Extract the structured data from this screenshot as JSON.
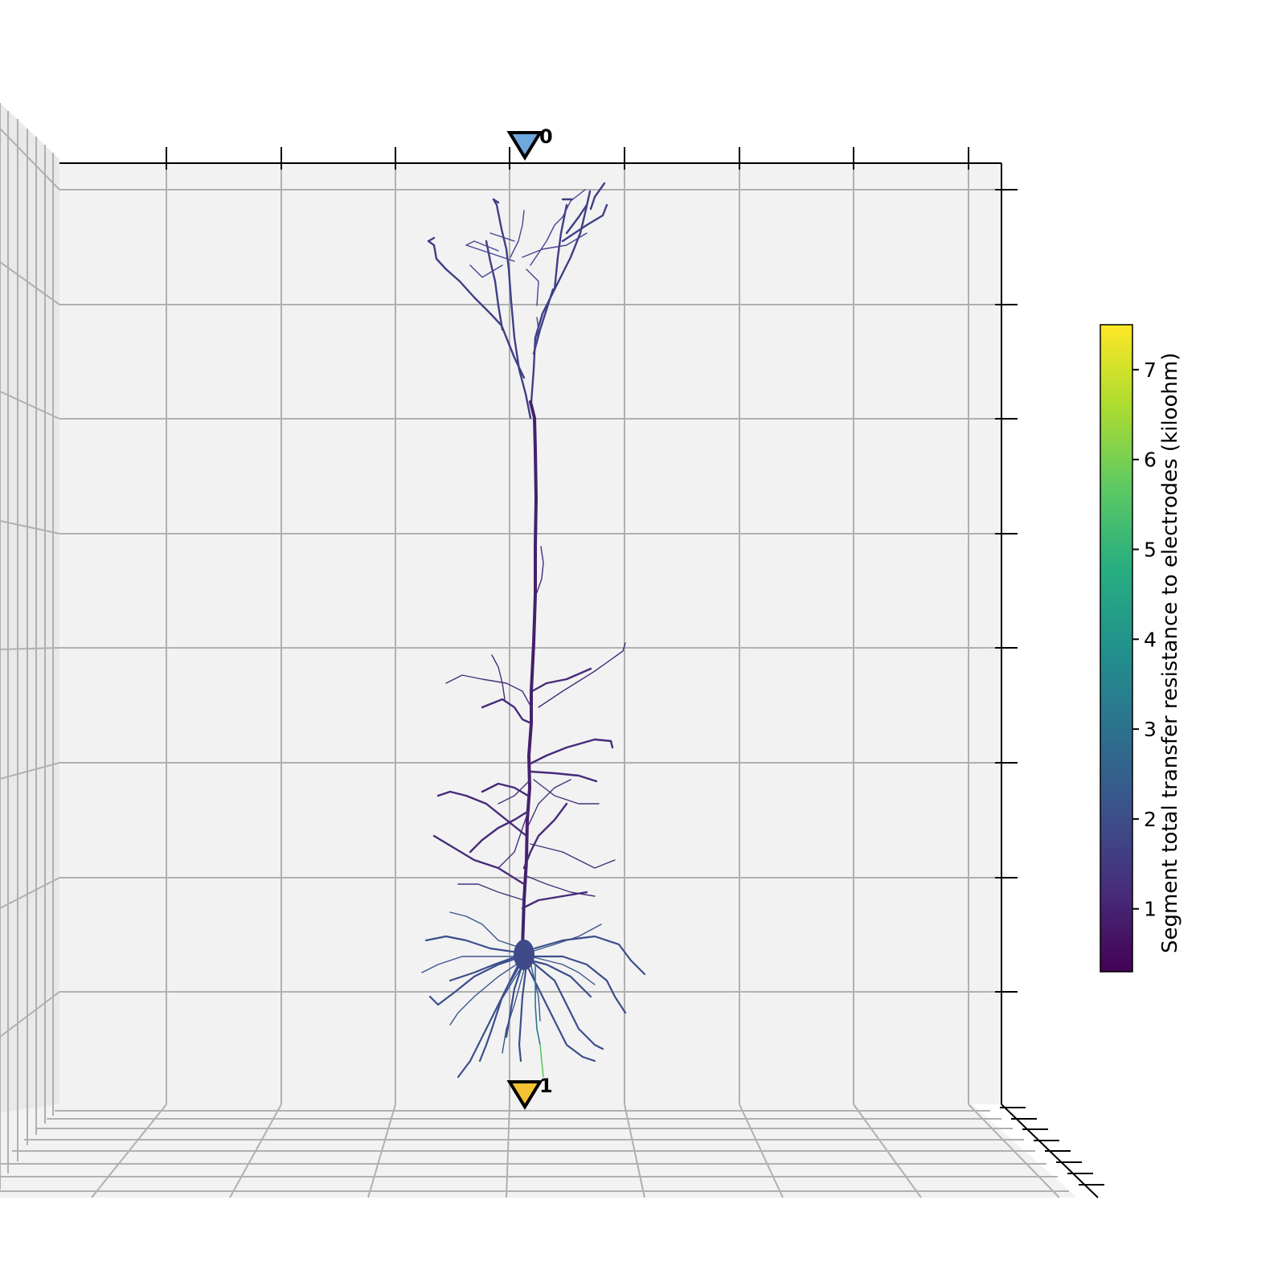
{
  "chart_data": {
    "type": "scatter",
    "projection": "3d",
    "view": "front, elevation 0",
    "grid": true,
    "axis_tick_labels": "none",
    "electrodes": [
      {
        "label": "0",
        "marker": "downward triangle",
        "color": "#6fa8dc"
      },
      {
        "label": "1",
        "marker": "downward triangle",
        "color": "#f1c232"
      }
    ],
    "morphology": "pyramidal neuron; apical dendrite reaching toward electrode 0, soma and basal dendrites near electrode 1",
    "segment_values_kiloohm": {
      "apical_tuft": 1.6,
      "apical_trunk": 0.8,
      "oblique_dendrites": 1.1,
      "soma": 1.3,
      "basal_dendrites": 2.0,
      "axon_initial": 3.2,
      "axon_distal": 5.6
    },
    "colorbar": {
      "label": "Segment total transfer resistance to electrodes (kiloohm)",
      "colormap": "viridis",
      "range": [
        0.3,
        7.5
      ],
      "ticks": [
        "1",
        "2",
        "3",
        "4",
        "5",
        "6",
        "7"
      ]
    }
  }
}
